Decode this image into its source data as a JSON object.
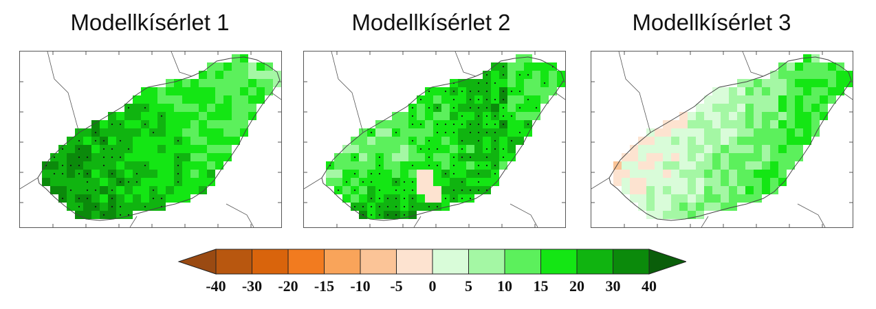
{
  "panels": [
    {
      "title": "Modellkísérlet 1"
    },
    {
      "title": "Modellkísérlet 2"
    },
    {
      "title": "Modellkísérlet 3"
    }
  ],
  "legend": {
    "tick_labels": [
      "-40",
      "-30",
      "-20",
      "-15",
      "-10",
      "-5",
      "0",
      "5",
      "10",
      "15",
      "20",
      "30",
      "40"
    ],
    "colors": [
      "#9a4a12",
      "#b8570f",
      "#d9640c",
      "#f27b1f",
      "#f9a45a",
      "#fbc497",
      "#fde3d0",
      "#d9fcd9",
      "#a4f7a4",
      "#5cf05c",
      "#14e614",
      "#10b410",
      "#0b8a0b",
      "#0a5e0a"
    ]
  }
}
